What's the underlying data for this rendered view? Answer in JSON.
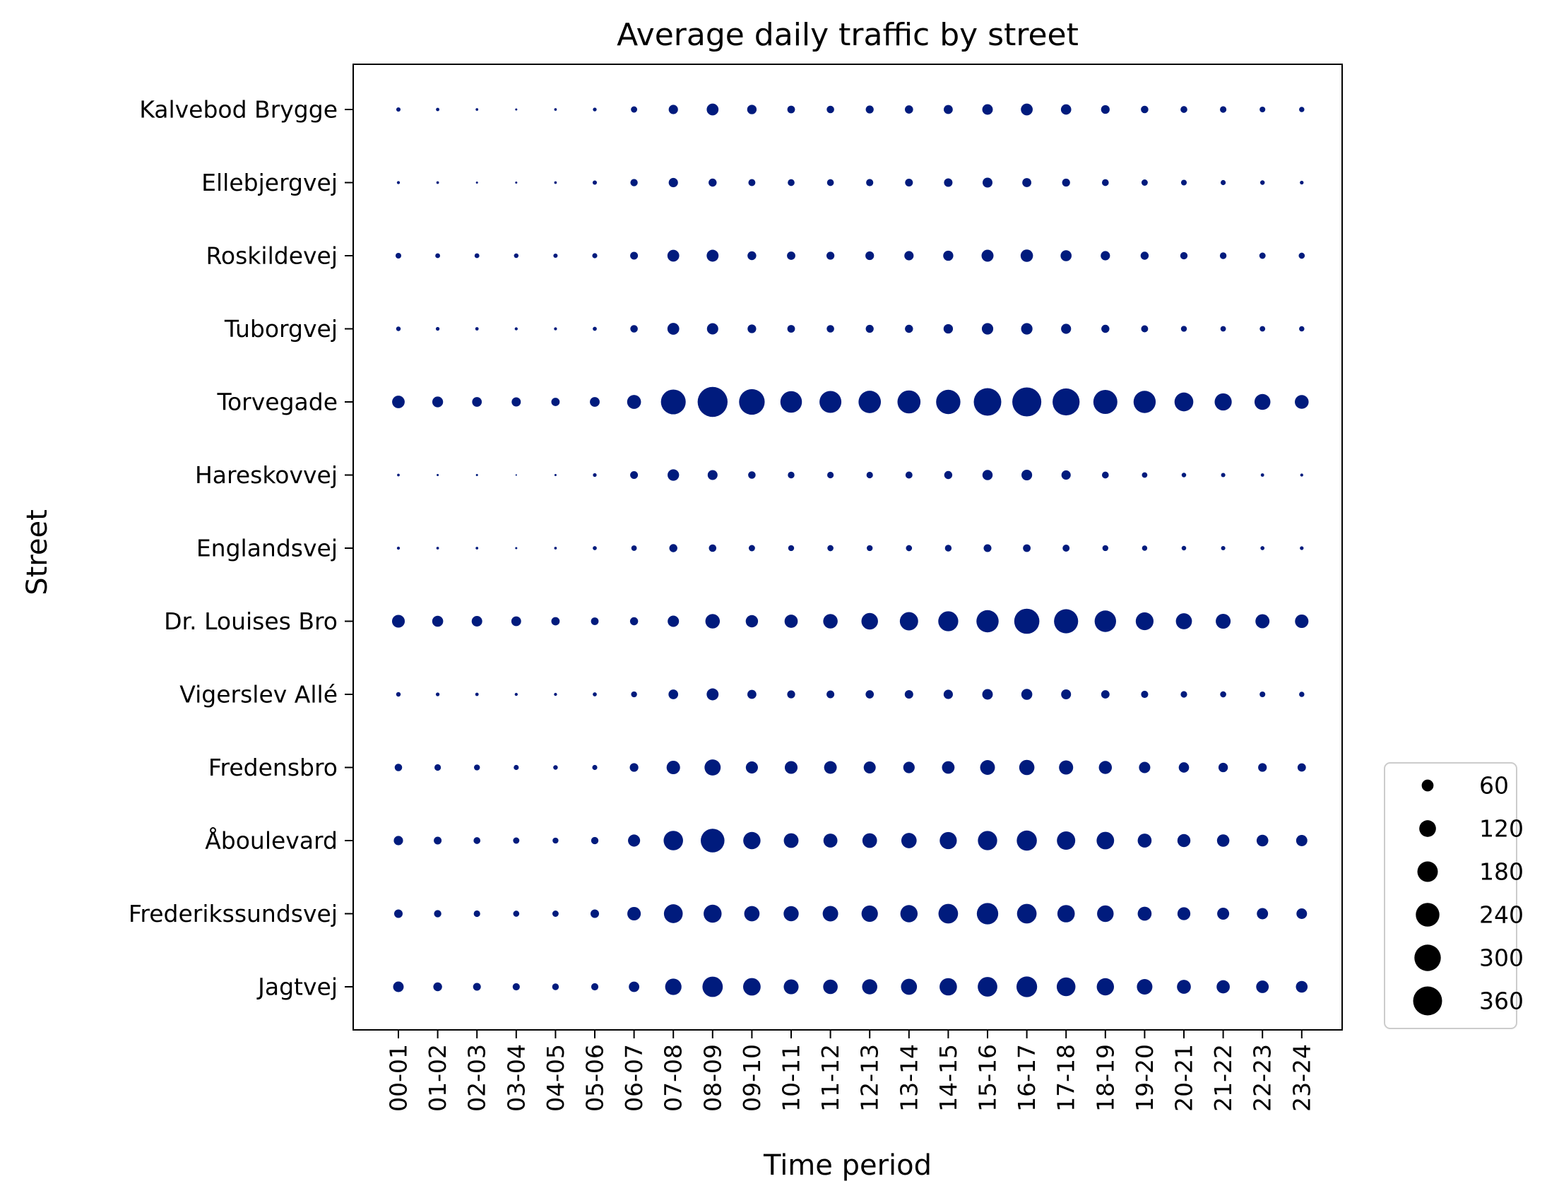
{
  "chart_data": {
    "type": "scatter",
    "title": "Average daily traffic by street",
    "xlabel": "Time period",
    "ylabel": "Street",
    "marker_color": "#001b7d",
    "x_categories": [
      "00-01",
      "01-02",
      "02-03",
      "03-04",
      "04-05",
      "05-06",
      "06-07",
      "07-08",
      "08-09",
      "09-10",
      "10-11",
      "11-12",
      "12-13",
      "13-14",
      "14-15",
      "15-16",
      "16-17",
      "17-18",
      "18-19",
      "19-20",
      "20-21",
      "21-22",
      "22-23",
      "23-24"
    ],
    "y_categories": [
      "Kalvebod Brygge",
      "Ellebjergvej",
      "Roskildevej",
      "Tuborgvej",
      "Torvegade",
      "Hareskovvej",
      "Englandsvej",
      "Dr. Louises Bro",
      "Vigerslev Allé",
      "Fredensbro",
      "Åboulevard",
      "Frederikssundsvej",
      "Jagtvej"
    ],
    "series": [
      {
        "street": "Kalvebod Brygge",
        "values": [
          8,
          5,
          3,
          2,
          3,
          6,
          17,
          37,
          60,
          38,
          25,
          24,
          27,
          29,
          35,
          48,
          60,
          46,
          32,
          24,
          20,
          18,
          14,
          12
        ]
      },
      {
        "street": "Ellebjergvej",
        "values": [
          4,
          3,
          2,
          2,
          3,
          8,
          23,
          37,
          28,
          21,
          20,
          20,
          22,
          26,
          31,
          42,
          35,
          27,
          20,
          17,
          14,
          11,
          9,
          6
        ]
      },
      {
        "street": "Roskildevej",
        "values": [
          14,
          10,
          10,
          9,
          8,
          11,
          26,
          60,
          61,
          33,
          30,
          27,
          32,
          37,
          44,
          62,
          66,
          52,
          37,
          28,
          23,
          19,
          17,
          16
        ]
      },
      {
        "street": "Tuborgvej",
        "values": [
          9,
          6,
          5,
          4,
          4,
          7,
          24,
          60,
          55,
          32,
          25,
          24,
          27,
          28,
          38,
          56,
          56,
          43,
          28,
          21,
          15,
          13,
          13,
          12
        ]
      },
      {
        "street": "Torvegade",
        "values": [
          68,
          50,
          40,
          36,
          30,
          41,
          83,
          264,
          385,
          282,
          200,
          206,
          215,
          228,
          254,
          325,
          362,
          314,
          248,
          211,
          152,
          126,
          109,
          82
        ]
      },
      {
        "street": "Hareskovvej",
        "values": [
          3,
          2,
          2,
          1,
          2,
          6,
          26,
          57,
          42,
          24,
          19,
          18,
          18,
          21,
          28,
          45,
          49,
          37,
          20,
          13,
          9,
          8,
          5,
          4
        ]
      },
      {
        "street": "Englandsvej",
        "values": [
          4,
          3,
          3,
          2,
          3,
          7,
          13,
          28,
          24,
          17,
          15,
          16,
          15,
          16,
          19,
          26,
          25,
          21,
          15,
          12,
          9,
          8,
          7,
          6
        ]
      },
      {
        "street": "Dr. Louises Bro",
        "values": [
          70,
          52,
          48,
          41,
          30,
          25,
          28,
          55,
          90,
          65,
          75,
          90,
          118,
          144,
          172,
          212,
          272,
          250,
          198,
          136,
          111,
          95,
          85,
          78
        ]
      },
      {
        "street": "Vigerslev Allé",
        "values": [
          9,
          6,
          5,
          4,
          4,
          7,
          15,
          40,
          61,
          35,
          27,
          26,
          29,
          31,
          37,
          48,
          52,
          42,
          30,
          22,
          18,
          16,
          14,
          12
        ]
      },
      {
        "street": "Fredensbro",
        "values": [
          24,
          18,
          15,
          11,
          9,
          11,
          32,
          78,
          112,
          63,
          70,
          69,
          62,
          56,
          68,
          94,
          100,
          86,
          73,
          55,
          46,
          38,
          32,
          30
        ]
      },
      {
        "street": "Åboulevard",
        "values": [
          37,
          26,
          20,
          17,
          15,
          23,
          63,
          162,
          242,
          128,
          93,
          84,
          92,
          101,
          126,
          160,
          174,
          145,
          132,
          83,
          73,
          66,
          59,
          54
        ]
      },
      {
        "street": "Frederikssundsvej",
        "values": [
          31,
          23,
          18,
          16,
          17,
          31,
          78,
          152,
          139,
          101,
          98,
          103,
          115,
          128,
          165,
          197,
          165,
          130,
          118,
          83,
          72,
          62,
          54,
          48
        ]
      },
      {
        "street": "Jagtvej",
        "values": [
          48,
          33,
          26,
          22,
          19,
          22,
          47,
          115,
          178,
          132,
          95,
          91,
          99,
          110,
          130,
          165,
          183,
          151,
          128,
          104,
          83,
          75,
          68,
          59
        ]
      }
    ],
    "legend": {
      "position": "lower-right, outside plot",
      "entries": [
        {
          "label": "60",
          "value": 60
        },
        {
          "label": "120",
          "value": 120
        },
        {
          "label": "180",
          "value": 180
        },
        {
          "label": "240",
          "value": 240
        },
        {
          "label": "300",
          "value": 300
        },
        {
          "label": "360",
          "value": 360
        }
      ]
    }
  }
}
